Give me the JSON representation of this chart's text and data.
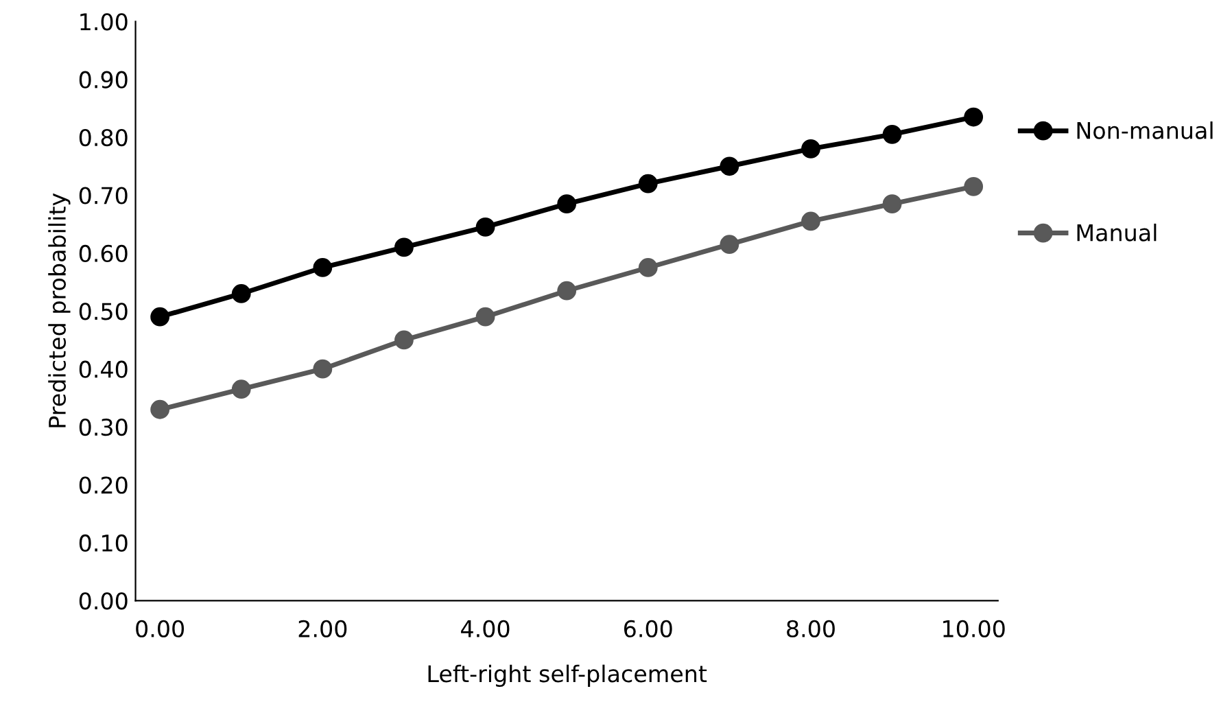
{
  "chart_data": {
    "type": "line",
    "xlabel": "Left-right self-placement",
    "ylabel": "Predicted probability",
    "x": [
      0,
      1,
      2,
      3,
      4,
      5,
      6,
      7,
      8,
      9,
      10
    ],
    "series": [
      {
        "name": "Non-manual",
        "color": "#000000",
        "values": [
          0.49,
          0.53,
          0.575,
          0.61,
          0.645,
          0.685,
          0.72,
          0.75,
          0.78,
          0.805,
          0.835
        ]
      },
      {
        "name": "Manual",
        "color": "#595959",
        "values": [
          0.33,
          0.365,
          0.4,
          0.45,
          0.49,
          0.535,
          0.575,
          0.615,
          0.655,
          0.685,
          0.715
        ]
      }
    ],
    "xlim": [
      -0.3,
      10.3
    ],
    "ylim": [
      0,
      1
    ],
    "xticks": [
      {
        "value": 0,
        "label": "0.00"
      },
      {
        "value": 2,
        "label": "2.00"
      },
      {
        "value": 4,
        "label": "4.00"
      },
      {
        "value": 6,
        "label": "6.00"
      },
      {
        "value": 8,
        "label": "8.00"
      },
      {
        "value": 10,
        "label": "10.00"
      }
    ],
    "yticks": [
      {
        "value": 0,
        "label": "0.00"
      },
      {
        "value": 0.1,
        "label": "0.10"
      },
      {
        "value": 0.2,
        "label": "0.20"
      },
      {
        "value": 0.3,
        "label": "0.30"
      },
      {
        "value": 0.4,
        "label": "0.40"
      },
      {
        "value": 0.5,
        "label": "0.50"
      },
      {
        "value": 0.6,
        "label": "0.60"
      },
      {
        "value": 0.7,
        "label": "0.70"
      },
      {
        "value": 0.8,
        "label": "0.80"
      },
      {
        "value": 0.9,
        "label": "0.90"
      },
      {
        "value": 1,
        "label": "1.00"
      }
    ],
    "grid": false,
    "legend": "right",
    "marker": "circle",
    "line_style": "solid"
  }
}
